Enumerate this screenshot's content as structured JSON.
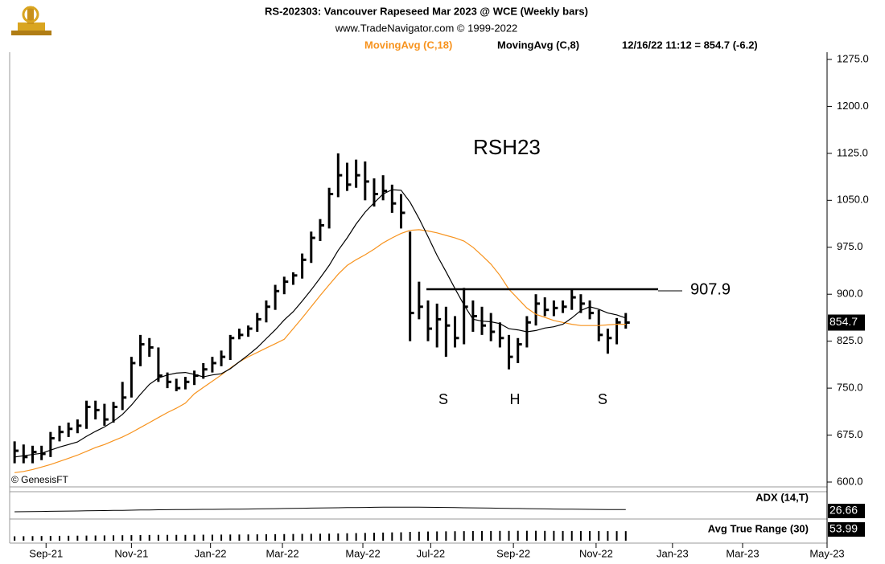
{
  "chart_data": {
    "type": "ohlc",
    "title": "RS-202303:  Vancouver Rapeseed Mar 2023 @ WCE  (Weekly bars)",
    "subtitle": "www.TradeNavigator.com © 1999-2022",
    "status": "12/16/22 11:12 = 854.7 (-6.2)",
    "source": "© GenesisFT",
    "annotations": [
      "RSH23",
      "S",
      "H",
      "S"
    ],
    "level": 907.9,
    "bar_color": "#000000",
    "high": [
      665,
      660,
      658,
      658,
      680,
      690,
      695,
      700,
      730,
      730,
      725,
      728,
      760,
      800,
      835,
      830,
      815,
      775,
      765,
      768,
      778,
      790,
      800,
      810,
      835,
      845,
      850,
      870,
      890,
      915,
      928,
      935,
      965,
      1000,
      1020,
      1070,
      1125,
      1110,
      1115,
      1112,
      1085,
      1090,
      1075,
      1060,
      1000,
      920,
      890,
      885,
      880,
      865,
      910,
      890,
      880,
      870,
      855,
      835,
      830,
      865,
      900,
      895,
      890,
      890,
      908,
      900,
      890,
      875,
      845,
      862,
      870
    ],
    "low": [
      630,
      630,
      630,
      635,
      640,
      665,
      672,
      678,
      685,
      700,
      690,
      695,
      715,
      735,
      785,
      800,
      760,
      750,
      745,
      748,
      755,
      765,
      775,
      785,
      795,
      828,
      832,
      840,
      855,
      875,
      900,
      915,
      925,
      950,
      985,
      1005,
      1055,
      1065,
      1070,
      1050,
      1040,
      1050,
      1030,
      1005,
      825,
      860,
      825,
      815,
      800,
      815,
      820,
      840,
      835,
      825,
      815,
      780,
      790,
      815,
      850,
      865,
      865,
      870,
      875,
      870,
      860,
      825,
      805,
      820,
      845
    ],
    "close": [
      650,
      640,
      648,
      645,
      670,
      680,
      685,
      690,
      720,
      715,
      700,
      720,
      735,
      790,
      820,
      815,
      770,
      760,
      750,
      760,
      770,
      780,
      790,
      800,
      830,
      835,
      845,
      860,
      880,
      905,
      920,
      930,
      955,
      990,
      1010,
      1060,
      1090,
      1075,
      1090,
      1080,
      1060,
      1065,
      1045,
      1030,
      870,
      880,
      845,
      860,
      850,
      830,
      880,
      865,
      850,
      840,
      830,
      800,
      820,
      855,
      885,
      875,
      878,
      880,
      895,
      885,
      870,
      835,
      830,
      855,
      854.7
    ],
    "series": [
      {
        "name": "MovingAvg (C,18)",
        "color": "#f7931e",
        "values": [
          615,
          617,
          620,
          624,
          628,
          633,
          638,
          643,
          649,
          655,
          660,
          666,
          672,
          679,
          687,
          695,
          703,
          711,
          718,
          726,
          741,
          751,
          761,
          771,
          782,
          792,
          800,
          807,
          814,
          821,
          828,
          845,
          862,
          880,
          898,
          915,
          932,
          946,
          955,
          963,
          972,
          982,
          990,
          997,
          1002,
          1003,
          1001,
          998,
          994,
          990,
          985,
          975,
          962,
          948,
          930,
          908,
          893,
          878,
          868,
          863,
          858,
          855,
          852,
          850,
          850,
          850,
          851,
          852,
          852
        ]
      },
      {
        "name": "MovingAvg (C,8)",
        "color": "#000000",
        "values": [
          640,
          642,
          644,
          646,
          651,
          656,
          660,
          664,
          673,
          681,
          688,
          697,
          708,
          723,
          740,
          756,
          766,
          771,
          774,
          775,
          772,
          768,
          771,
          773,
          781,
          792,
          803,
          815,
          829,
          843,
          859,
          872,
          889,
          907,
          926,
          946,
          970,
          990,
          1012,
          1031,
          1046,
          1060,
          1067,
          1066,
          1047,
          1021,
          992,
          962,
          936,
          909,
          883,
          860,
          857,
          856,
          853,
          845,
          843,
          840,
          842,
          846,
          848,
          852,
          862,
          874,
          880,
          876,
          870,
          867,
          862
        ]
      }
    ],
    "indicators": [
      {
        "name": "ADX (14,T)",
        "values": [
          20,
          20.3,
          20.6,
          21,
          21.4,
          21.8,
          22.2,
          22.6,
          23,
          23.4,
          23.8,
          24.2,
          24.6,
          25,
          25.4,
          25.8,
          26.2,
          26.5,
          26.8,
          27,
          27.2,
          27.4,
          27.6,
          27.8,
          28,
          28.3,
          28.6,
          29,
          29.4,
          29.8,
          30.2,
          30.6,
          31,
          31.4,
          31.8,
          32.2,
          32.6,
          33,
          33.3,
          33.6,
          33.9,
          34.2,
          34.4,
          34.5,
          34.4,
          34.2,
          34,
          33.7,
          33.4,
          33,
          32.6,
          32.2,
          31.8,
          31.4,
          31,
          30.6,
          30.2,
          29.8,
          29.4,
          29,
          28.6,
          28.3,
          28,
          27.7,
          27.4,
          27.2,
          27,
          26.8,
          26.66
        ]
      },
      {
        "name": "Avg True Range (30)",
        "values": [
          25,
          25.5,
          26,
          26.5,
          27,
          27.5,
          28,
          28.5,
          29,
          29.5,
          30,
          30.5,
          31,
          31.5,
          32,
          32.5,
          33,
          33,
          33,
          33,
          33.5,
          34,
          34,
          34.5,
          35,
          35,
          35.5,
          36,
          36.5,
          37,
          37.5,
          38,
          38.5,
          39,
          39.5,
          40,
          41,
          42,
          43,
          44,
          45,
          46,
          47,
          47.5,
          50,
          51,
          52,
          52.5,
          53,
          53.5,
          54,
          54.5,
          55,
          55,
          55.5,
          55.5,
          56,
          56,
          56,
          55.5,
          55.5,
          55,
          55,
          54.8,
          54.6,
          54.4,
          54.2,
          54.1,
          53.99
        ]
      }
    ],
    "xlim": [
      -0.55,
      90.4
    ],
    "xticks": [
      {
        "value": 3.5,
        "label": "Sep-21"
      },
      {
        "value": 13,
        "label": "Nov-21"
      },
      {
        "value": 21.8,
        "label": "Jan-22"
      },
      {
        "value": 29.8,
        "label": "Mar-22"
      },
      {
        "value": 38.75,
        "label": "May-22"
      },
      {
        "value": 46.3,
        "label": "Jul-22"
      },
      {
        "value": 55.5,
        "label": "Sep-22"
      },
      {
        "value": 64.7,
        "label": "Nov-22"
      },
      {
        "value": 73.2,
        "label": "Jan-23"
      },
      {
        "value": 81,
        "label": "Mar-23"
      },
      {
        "value": 90.4,
        "label": "May-23"
      }
    ],
    "ylim": [
      593.6,
      1286.5
    ],
    "yticks": [
      {
        "value": 600,
        "label": "600.0"
      },
      {
        "value": 675,
        "label": "675.0"
      },
      {
        "value": 750,
        "label": "750.0"
      },
      {
        "value": 825,
        "label": "825.0"
      },
      {
        "value": 900,
        "label": "900.0"
      },
      {
        "value": 975,
        "label": "975.0"
      },
      {
        "value": 1050,
        "label": "1050.0"
      },
      {
        "value": 1125,
        "label": "1125.0"
      },
      {
        "value": 1200,
        "label": "1200.0"
      },
      {
        "value": 1275,
        "label": "1275.0"
      }
    ]
  }
}
